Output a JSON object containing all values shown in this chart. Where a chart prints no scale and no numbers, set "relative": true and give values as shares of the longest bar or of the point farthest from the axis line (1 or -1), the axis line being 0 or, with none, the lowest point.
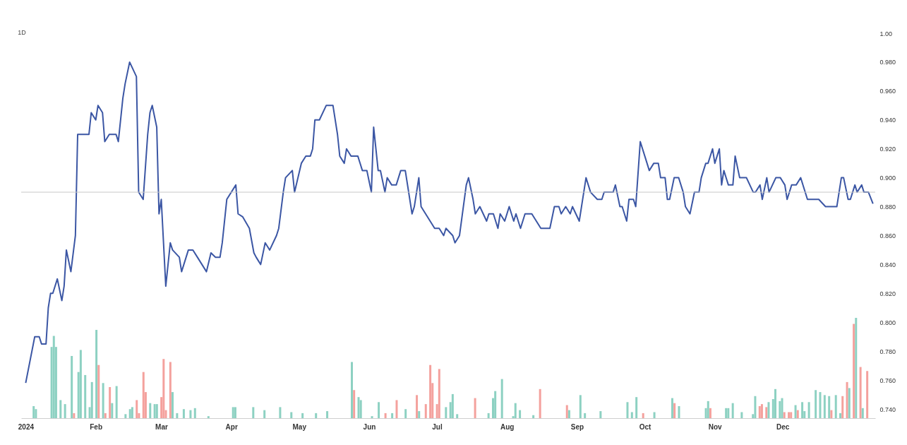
{
  "chart_data": [
    {
      "type": "line",
      "title": "1D",
      "color": "#3b56a4",
      "grid": false,
      "xlim": [
        "2023-12-30",
        "2025-01-11"
      ],
      "xticks": [
        {
          "value": "2024-01-01",
          "label": "2024"
        },
        {
          "value": "2024-02-01",
          "label": "Feb"
        },
        {
          "value": "2024-03-01",
          "label": "Mar"
        },
        {
          "value": "2024-04-01",
          "label": "Apr"
        },
        {
          "value": "2024-05-01",
          "label": "May"
        },
        {
          "value": "2024-06-01",
          "label": "Jun"
        },
        {
          "value": "2024-07-01",
          "label": "Jul"
        },
        {
          "value": "2024-08-01",
          "label": "Aug"
        },
        {
          "value": "2024-09-01",
          "label": "Sep"
        },
        {
          "value": "2024-10-01",
          "label": "Oct"
        },
        {
          "value": "2024-11-01",
          "label": "Nov"
        },
        {
          "value": "2024-12-01",
          "label": "Dec"
        }
      ],
      "ylim": [
        0.74,
        1
      ],
      "yticks": [
        {
          "value": 0.74,
          "label": "0.740"
        },
        {
          "value": 0.76,
          "label": "0.760"
        },
        {
          "value": 0.78,
          "label": "0.780"
        },
        {
          "value": 0.8,
          "label": "0.800"
        },
        {
          "value": 0.82,
          "label": "0.820"
        },
        {
          "value": 0.84,
          "label": "0.840"
        },
        {
          "value": 0.86,
          "label": "0.860"
        },
        {
          "value": 0.88,
          "label": "0.880"
        },
        {
          "value": 0.9,
          "label": "0.900"
        },
        {
          "value": 0.92,
          "label": "0.920"
        },
        {
          "value": 0.94,
          "label": "0.940"
        },
        {
          "value": 0.96,
          "label": "0.960"
        },
        {
          "value": 0.98,
          "label": "0.980"
        },
        {
          "value": 1,
          "label": "1.00"
        }
      ],
      "ref_lines": [
        {
          "axis": "y",
          "value": 0.89,
          "color": "#c8c8c8"
        }
      ],
      "x": [
        "2024-01-01",
        "2024-01-05",
        "2024-01-07",
        "2024-01-08",
        "2024-01-10",
        "2024-01-11",
        "2024-01-12",
        "2024-01-13",
        "2024-01-15",
        "2024-01-17",
        "2024-01-18",
        "2024-01-19",
        "2024-01-21",
        "2024-01-23",
        "2024-01-24",
        "2024-01-29",
        "2024-01-30",
        "2024-02-01",
        "2024-02-02",
        "2024-02-04",
        "2024-02-05",
        "2024-02-07",
        "2024-02-10",
        "2024-02-11",
        "2024-02-13",
        "2024-02-14",
        "2024-02-16",
        "2024-02-19",
        "2024-02-20",
        "2024-02-22",
        "2024-02-24",
        "2024-02-25",
        "2024-02-26",
        "2024-02-28",
        "2024-02-29",
        "2024-03-01",
        "2024-03-03",
        "2024-03-05",
        "2024-03-06",
        "2024-03-09",
        "2024-03-10",
        "2024-03-13",
        "2024-03-15",
        "2024-03-17",
        "2024-03-19",
        "2024-03-21",
        "2024-03-23",
        "2024-03-25",
        "2024-03-27",
        "2024-03-28",
        "2024-03-30",
        "2024-04-03",
        "2024-04-04",
        "2024-04-06",
        "2024-04-09",
        "2024-04-11",
        "2024-04-12",
        "2024-04-14",
        "2024-04-16",
        "2024-04-18",
        "2024-04-21",
        "2024-04-22",
        "2024-04-24",
        "2024-04-25",
        "2024-04-28",
        "2024-04-29",
        "2024-05-02",
        "2024-05-04",
        "2024-05-06",
        "2024-05-07",
        "2024-05-08",
        "2024-05-10",
        "2024-05-13",
        "2024-05-16",
        "2024-05-18",
        "2024-05-19",
        "2024-05-21",
        "2024-05-22",
        "2024-05-24",
        "2024-05-27",
        "2024-05-29",
        "2024-05-31",
        "2024-06-02",
        "2024-06-03",
        "2024-06-05",
        "2024-06-06",
        "2024-06-08",
        "2024-06-09",
        "2024-06-11",
        "2024-06-13",
        "2024-06-15",
        "2024-06-17",
        "2024-06-20",
        "2024-06-21",
        "2024-06-23",
        "2024-06-24",
        "2024-06-26",
        "2024-06-28",
        "2024-06-30",
        "2024-07-02",
        "2024-07-04",
        "2024-07-05",
        "2024-07-08",
        "2024-07-09",
        "2024-07-11",
        "2024-07-14",
        "2024-07-15",
        "2024-07-17",
        "2024-07-18",
        "2024-07-20",
        "2024-07-23",
        "2024-07-24",
        "2024-07-26",
        "2024-07-28",
        "2024-07-29",
        "2024-07-31",
        "2024-08-02",
        "2024-08-04",
        "2024-08-05",
        "2024-08-07",
        "2024-08-09",
        "2024-08-12",
        "2024-08-14",
        "2024-08-16",
        "2024-08-20",
        "2024-08-22",
        "2024-08-24",
        "2024-08-25",
        "2024-08-27",
        "2024-08-29",
        "2024-08-30",
        "2024-09-02",
        "2024-09-03",
        "2024-09-05",
        "2024-09-07",
        "2024-09-10",
        "2024-09-12",
        "2024-09-13",
        "2024-09-17",
        "2024-09-18",
        "2024-09-20",
        "2024-09-21",
        "2024-09-23",
        "2024-09-24",
        "2024-09-26",
        "2024-09-27",
        "2024-09-29",
        "2024-10-01",
        "2024-10-03",
        "2024-10-05",
        "2024-10-07",
        "2024-10-08",
        "2024-10-10",
        "2024-10-11",
        "2024-10-12",
        "2024-10-14",
        "2024-10-16",
        "2024-10-18",
        "2024-10-19",
        "2024-10-21",
        "2024-10-23",
        "2024-10-25",
        "2024-10-26",
        "2024-10-28",
        "2024-10-29",
        "2024-10-31",
        "2024-11-01",
        "2024-11-03",
        "2024-11-04",
        "2024-11-05",
        "2024-11-07",
        "2024-11-09",
        "2024-11-10",
        "2024-11-12",
        "2024-11-15",
        "2024-11-18",
        "2024-11-19",
        "2024-11-21",
        "2024-11-22",
        "2024-11-24",
        "2024-11-25",
        "2024-11-28",
        "2024-11-30",
        "2024-12-02",
        "2024-12-03",
        "2024-12-05",
        "2024-12-07",
        "2024-12-09",
        "2024-12-12",
        "2024-12-17",
        "2024-12-20",
        "2024-12-25",
        "2024-12-27",
        "2024-12-28",
        "2024-12-30",
        "2024-12-31",
        "2025-01-02",
        "2025-01-03",
        "2025-01-05",
        "2025-01-06",
        "2025-01-08",
        "2025-01-10"
      ],
      "values": [
        0.758,
        0.79,
        0.79,
        0.785,
        0.785,
        0.81,
        0.82,
        0.82,
        0.83,
        0.815,
        0.825,
        0.85,
        0.835,
        0.86,
        0.93,
        0.93,
        0.945,
        0.94,
        0.95,
        0.945,
        0.925,
        0.93,
        0.93,
        0.925,
        0.955,
        0.965,
        0.98,
        0.97,
        0.89,
        0.885,
        0.93,
        0.945,
        0.95,
        0.935,
        0.875,
        0.885,
        0.825,
        0.855,
        0.85,
        0.845,
        0.835,
        0.85,
        0.85,
        0.845,
        0.84,
        0.835,
        0.848,
        0.845,
        0.845,
        0.855,
        0.885,
        0.895,
        0.875,
        0.873,
        0.865,
        0.848,
        0.845,
        0.84,
        0.855,
        0.85,
        0.86,
        0.865,
        0.89,
        0.9,
        0.905,
        0.89,
        0.91,
        0.915,
        0.915,
        0.92,
        0.94,
        0.94,
        0.95,
        0.95,
        0.93,
        0.915,
        0.91,
        0.92,
        0.915,
        0.915,
        0.905,
        0.905,
        0.89,
        0.935,
        0.905,
        0.905,
        0.89,
        0.9,
        0.895,
        0.895,
        0.905,
        0.905,
        0.875,
        0.88,
        0.9,
        0.88,
        0.875,
        0.87,
        0.865,
        0.865,
        0.86,
        0.865,
        0.86,
        0.855,
        0.86,
        0.895,
        0.9,
        0.885,
        0.875,
        0.88,
        0.87,
        0.875,
        0.875,
        0.865,
        0.875,
        0.87,
        0.88,
        0.87,
        0.875,
        0.865,
        0.875,
        0.875,
        0.87,
        0.865,
        0.865,
        0.88,
        0.88,
        0.875,
        0.88,
        0.875,
        0.88,
        0.87,
        0.88,
        0.9,
        0.89,
        0.885,
        0.885,
        0.89,
        0.89,
        0.895,
        0.88,
        0.88,
        0.87,
        0.885,
        0.885,
        0.88,
        0.925,
        0.915,
        0.905,
        0.91,
        0.91,
        0.9,
        0.9,
        0.885,
        0.885,
        0.9,
        0.9,
        0.89,
        0.88,
        0.875,
        0.89,
        0.89,
        0.9,
        0.91,
        0.91,
        0.92,
        0.91,
        0.92,
        0.895,
        0.905,
        0.895,
        0.895,
        0.915,
        0.9,
        0.9,
        0.89,
        0.89,
        0.895,
        0.885,
        0.9,
        0.89,
        0.9,
        0.9,
        0.895,
        0.885,
        0.895,
        0.895,
        0.9,
        0.885,
        0.885,
        0.88,
        0.88,
        0.9,
        0.9,
        0.885,
        0.885,
        0.895,
        0.89,
        0.895,
        0.89,
        0.89,
        0.882
      ]
    },
    {
      "type": "bar",
      "relative": true,
      "xlim": [
        "2023-12-30",
        "2025-01-11"
      ],
      "x": [
        "2024-01-03",
        "2024-01-04",
        "2024-01-11",
        "2024-01-12",
        "2024-01-13",
        "2024-01-15",
        "2024-01-17",
        "2024-01-20",
        "2024-01-21",
        "2024-01-23",
        "2024-01-24",
        "2024-01-26",
        "2024-01-28",
        "2024-01-29",
        "2024-01-31",
        "2024-02-01",
        "2024-02-03",
        "2024-02-04",
        "2024-02-06",
        "2024-02-07",
        "2024-02-09",
        "2024-02-13",
        "2024-02-15",
        "2024-02-16",
        "2024-02-18",
        "2024-02-19",
        "2024-02-21",
        "2024-02-22",
        "2024-02-24",
        "2024-02-26",
        "2024-02-27",
        "2024-02-29",
        "2024-03-01",
        "2024-03-02",
        "2024-03-04",
        "2024-03-05",
        "2024-03-07",
        "2024-03-10",
        "2024-03-13",
        "2024-03-15",
        "2024-03-21",
        "2024-04-01",
        "2024-04-02",
        "2024-04-10",
        "2024-04-15",
        "2024-04-22",
        "2024-04-27",
        "2024-05-02",
        "2024-05-08",
        "2024-05-13",
        "2024-05-24",
        "2024-05-25",
        "2024-05-27",
        "2024-05-28",
        "2024-06-02",
        "2024-06-05",
        "2024-06-08",
        "2024-06-11",
        "2024-06-13",
        "2024-06-17",
        "2024-06-22",
        "2024-06-23",
        "2024-06-26",
        "2024-06-28",
        "2024-06-29",
        "2024-07-01",
        "2024-07-02",
        "2024-07-05",
        "2024-07-07",
        "2024-07-08",
        "2024-07-10",
        "2024-07-18",
        "2024-07-24",
        "2024-07-26",
        "2024-07-27",
        "2024-07-30",
        "2024-08-04",
        "2024-08-05",
        "2024-08-07",
        "2024-08-13",
        "2024-08-16",
        "2024-08-28",
        "2024-08-29",
        "2024-09-03",
        "2024-09-05",
        "2024-09-12",
        "2024-09-24",
        "2024-09-26",
        "2024-09-28",
        "2024-10-01",
        "2024-10-06",
        "2024-10-14",
        "2024-10-15",
        "2024-10-17",
        "2024-10-29",
        "2024-10-30",
        "2024-10-31",
        "2024-11-07",
        "2024-11-08",
        "2024-11-10",
        "2024-11-14",
        "2024-11-19",
        "2024-11-20",
        "2024-11-22",
        "2024-11-23",
        "2024-11-25",
        "2024-11-26",
        "2024-11-28",
        "2024-11-29",
        "2024-12-01",
        "2024-12-02",
        "2024-12-03",
        "2024-12-05",
        "2024-12-06",
        "2024-12-08",
        "2024-12-09",
        "2024-12-11",
        "2024-12-12",
        "2024-12-14",
        "2024-12-17",
        "2024-12-19",
        "2024-12-21",
        "2024-12-23",
        "2024-12-24",
        "2024-12-26",
        "2024-12-28",
        "2024-12-29",
        "2024-12-31",
        "2025-01-01",
        "2025-01-03",
        "2025-01-04",
        "2025-01-06",
        "2025-01-07",
        "2025-01-09"
      ],
      "values": [
        0.12,
        0.09,
        0.71,
        0.82,
        0.71,
        0.18,
        0.14,
        0.62,
        0.05,
        0.46,
        0.68,
        0.43,
        0.11,
        0.36,
        0.88,
        0.53,
        0.35,
        0.05,
        0.31,
        0.15,
        0.32,
        0.04,
        0.09,
        0.11,
        0.18,
        0.05,
        0.46,
        0.26,
        0.15,
        0.14,
        0.14,
        0.21,
        0.59,
        0.08,
        0.56,
        0.26,
        0.05,
        0.09,
        0.08,
        0.1,
        0.02,
        0.11,
        0.11,
        0.11,
        0.08,
        0.11,
        0.06,
        0.05,
        0.05,
        0.07,
        0.56,
        0.28,
        0.21,
        0.18,
        0.02,
        0.16,
        0.05,
        0.05,
        0.18,
        0.09,
        0.23,
        0.07,
        0.14,
        0.53,
        0.35,
        0.14,
        0.49,
        0.11,
        0.16,
        0.24,
        0.04,
        0.2,
        0.05,
        0.2,
        0.27,
        0.39,
        0.02,
        0.15,
        0.08,
        0.03,
        0.29,
        0.13,
        0.08,
        0.23,
        0.05,
        0.07,
        0.16,
        0.06,
        0.21,
        0.05,
        0.06,
        0.2,
        0.15,
        0.12,
        0.1,
        0.17,
        0.1,
        0.1,
        0.1,
        0.15,
        0.06,
        0.04,
        0.22,
        0.12,
        0.14,
        0.11,
        0.16,
        0.19,
        0.29,
        0.17,
        0.2,
        0.06,
        0.06,
        0.06,
        0.13,
        0.08,
        0.16,
        0.07,
        0.16,
        0.28,
        0.26,
        0.23,
        0.22,
        0.08,
        0.23,
        0.05,
        0.22,
        0.36,
        0.3,
        0.94,
        1,
        0.51,
        0.1,
        0.47
      ],
      "colors": [
        "#8dd1c2",
        "#8dd1c2",
        "#8dd1c2",
        "#8dd1c2",
        "#8dd1c2",
        "#8dd1c2",
        "#8dd1c2",
        "#8dd1c2",
        "#f4a19d",
        "#8dd1c2",
        "#8dd1c2",
        "#8dd1c2",
        "#8dd1c2",
        "#8dd1c2",
        "#8dd1c2",
        "#f4a19d",
        "#8dd1c2",
        "#f4a19d",
        "#f4a19d",
        "#8dd1c2",
        "#8dd1c2",
        "#8dd1c2",
        "#8dd1c2",
        "#8dd1c2",
        "#f4a19d",
        "#f4a19d",
        "#f4a19d",
        "#f4a19d",
        "#8dd1c2",
        "#8dd1c2",
        "#8dd1c2",
        "#f4a19d",
        "#f4a19d",
        "#f4a19d",
        "#f4a19d",
        "#8dd1c2",
        "#8dd1c2",
        "#8dd1c2",
        "#8dd1c2",
        "#8dd1c2",
        "#8dd1c2",
        "#8dd1c2",
        "#8dd1c2",
        "#8dd1c2",
        "#8dd1c2",
        "#8dd1c2",
        "#8dd1c2",
        "#8dd1c2",
        "#8dd1c2",
        "#8dd1c2",
        "#8dd1c2",
        "#f4a19d",
        "#8dd1c2",
        "#8dd1c2",
        "#8dd1c2",
        "#8dd1c2",
        "#f4a19d",
        "#8dd1c2",
        "#f4a19d",
        "#8dd1c2",
        "#f4a19d",
        "#8dd1c2",
        "#f4a19d",
        "#f4a19d",
        "#f4a19d",
        "#f4a19d",
        "#f4a19d",
        "#8dd1c2",
        "#8dd1c2",
        "#8dd1c2",
        "#8dd1c2",
        "#f4a19d",
        "#8dd1c2",
        "#8dd1c2",
        "#8dd1c2",
        "#8dd1c2",
        "#8dd1c2",
        "#8dd1c2",
        "#8dd1c2",
        "#8dd1c2",
        "#f4a19d",
        "#f4a19d",
        "#8dd1c2",
        "#8dd1c2",
        "#8dd1c2",
        "#8dd1c2",
        "#8dd1c2",
        "#8dd1c2",
        "#8dd1c2",
        "#f4a19d",
        "#8dd1c2",
        "#8dd1c2",
        "#f4a19d",
        "#8dd1c2",
        "#8dd1c2",
        "#8dd1c2",
        "#f4a19d",
        "#8dd1c2",
        "#8dd1c2",
        "#8dd1c2",
        "#8dd1c2",
        "#8dd1c2",
        "#8dd1c2",
        "#f4a19d",
        "#f4a19d",
        "#f4a19d",
        "#8dd1c2",
        "#8dd1c2",
        "#8dd1c2",
        "#8dd1c2",
        "#8dd1c2",
        "#f4a19d",
        "#f4a19d",
        "#f4a19d",
        "#8dd1c2",
        "#f4a19d",
        "#8dd1c2",
        "#8dd1c2",
        "#8dd1c2",
        "#8dd1c2",
        "#8dd1c2",
        "#8dd1c2",
        "#8dd1c2",
        "#f4a19d",
        "#8dd1c2",
        "#8dd1c2",
        "#f4a19d",
        "#f4a19d",
        "#8dd1c2",
        "#f4a19d",
        "#8dd1c2",
        "#f4a19d",
        "#8dd1c2",
        "#f4a19d"
      ]
    }
  ]
}
